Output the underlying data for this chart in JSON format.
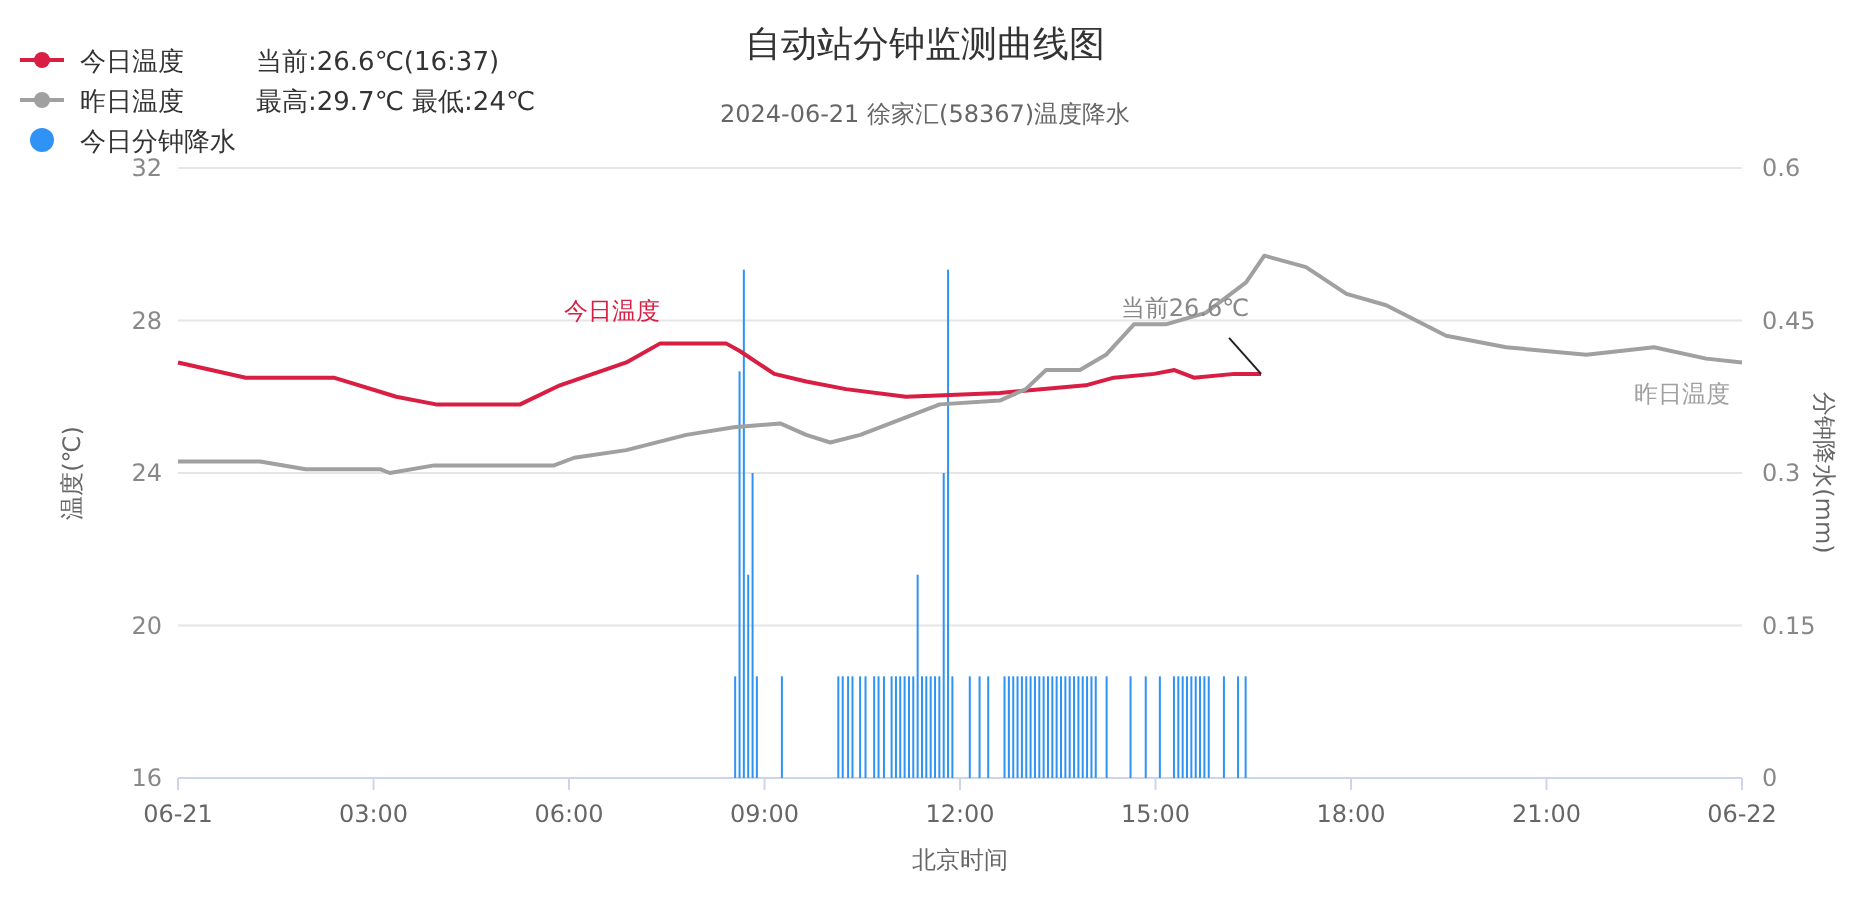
{
  "chart_data": {
    "type": "line",
    "title": "自动站分钟监测曲线图",
    "subtitle": "2024-06-21 徐家汇(58367)温度降水",
    "xlabel": "北京时间",
    "ylabel": "温度(℃)",
    "y2label": "分钟降水(mm)",
    "xlim": [
      0,
      24
    ],
    "xticks": [
      {
        "value": 0,
        "label": "06-21"
      },
      {
        "value": 3,
        "label": "03:00"
      },
      {
        "value": 6,
        "label": "06:00"
      },
      {
        "value": 9,
        "label": "09:00"
      },
      {
        "value": 12,
        "label": "12:00"
      },
      {
        "value": 15,
        "label": "15:00"
      },
      {
        "value": 18,
        "label": "18:00"
      },
      {
        "value": 21,
        "label": "21:00"
      },
      {
        "value": 24,
        "label": "06-22"
      }
    ],
    "ylim": [
      16,
      32
    ],
    "yticks": [
      16,
      20,
      24,
      28,
      32
    ],
    "y2lim": [
      0,
      0.6
    ],
    "y2ticks": [
      0,
      0.15,
      0.3,
      0.45,
      0.6
    ],
    "grid": "y",
    "legend": "top left",
    "annotations": [
      "当前:26.6℃(16:37)",
      "最高:29.7℃ 最低:24℃",
      {
        "text": "当前26.6℃",
        "x": 16.62,
        "y": 26.6
      }
    ],
    "series": [
      {
        "name": "今日温度",
        "color": "#d81e43",
        "x": [
          0,
          1.04,
          2.39,
          3.35,
          3.96,
          5.25,
          5.86,
          6.88,
          7.4,
          8.41,
          8.62,
          9.15,
          9.64,
          10.25,
          11.17,
          12.61,
          13.93,
          14.36,
          14.98,
          15.29,
          15.59,
          16.21,
          16.62
        ],
        "values": [
          26.9,
          26.5,
          26.5,
          26.0,
          25.8,
          25.8,
          26.3,
          26.9,
          27.4,
          27.4,
          27.2,
          26.6,
          26.4,
          26.2,
          26.0,
          26.1,
          26.3,
          26.5,
          26.6,
          26.7,
          26.5,
          26.6,
          26.6
        ]
      },
      {
        "name": "昨日温度",
        "color": "#a0a0a0",
        "x": [
          0,
          1.26,
          1.96,
          3.1,
          3.25,
          3.93,
          5.77,
          6.08,
          6.88,
          7.8,
          8.53,
          9.24,
          9.64,
          10.01,
          10.47,
          11.69,
          12.61,
          13.01,
          13.32,
          13.84,
          14.24,
          14.67,
          15.16,
          15.77,
          16.39,
          16.67,
          17.31,
          17.93,
          18.54,
          19.46,
          20.38,
          21.61,
          22.65,
          23.45,
          24
        ],
        "values": [
          24.3,
          24.3,
          24.1,
          24.1,
          24.0,
          24.2,
          24.2,
          24.4,
          24.6,
          25.0,
          25.2,
          25.3,
          25.0,
          24.8,
          25.0,
          25.8,
          25.9,
          26.2,
          26.7,
          26.7,
          27.1,
          27.9,
          27.9,
          28.2,
          29.0,
          29.7,
          29.4,
          28.7,
          28.4,
          27.6,
          27.3,
          27.1,
          27.3,
          27.0,
          26.9
        ]
      },
      {
        "name": "今日分钟降水",
        "type": "bar",
        "axis": "y2",
        "color": "#2e93f5",
        "x": [
          8.55,
          8.617,
          8.683,
          8.75,
          8.817,
          8.883,
          9.267,
          10.133,
          10.2,
          10.283,
          10.35,
          10.467,
          10.55,
          10.683,
          10.75,
          10.833,
          10.95,
          11.017,
          11.083,
          11.15,
          11.217,
          11.283,
          11.35,
          11.417,
          11.483,
          11.55,
          11.617,
          11.683,
          11.75,
          11.817,
          11.883,
          12.15,
          12.3,
          12.433,
          12.683,
          12.75,
          12.817,
          12.883,
          12.95,
          13.017,
          13.083,
          13.15,
          13.217,
          13.283,
          13.35,
          13.417,
          13.483,
          13.55,
          13.617,
          13.683,
          13.75,
          13.817,
          13.883,
          13.95,
          14.017,
          14.083,
          14.25,
          14.617,
          14.85,
          15.067,
          15.283,
          15.35,
          15.417,
          15.483,
          15.55,
          15.617,
          15.683,
          15.75,
          15.817,
          16.05,
          16.267,
          16.383
        ],
        "values": [
          0.1,
          0.4,
          0.5,
          0.2,
          0.3,
          0.1,
          0.1,
          0.1,
          0.1,
          0.1,
          0.1,
          0.1,
          0.1,
          0.1,
          0.1,
          0.1,
          0.1,
          0.1,
          0.1,
          0.1,
          0.1,
          0.1,
          0.2,
          0.1,
          0.1,
          0.1,
          0.1,
          0.1,
          0.3,
          0.5,
          0.1,
          0.1,
          0.1,
          0.1,
          0.1,
          0.1,
          0.1,
          0.1,
          0.1,
          0.1,
          0.1,
          0.1,
          0.1,
          0.1,
          0.1,
          0.1,
          0.1,
          0.1,
          0.1,
          0.1,
          0.1,
          0.1,
          0.1,
          0.1,
          0.1,
          0.1,
          0.1,
          0.1,
          0.1,
          0.1,
          0.1,
          0.1,
          0.1,
          0.1,
          0.1,
          0.1,
          0.1,
          0.1,
          0.1,
          0.1,
          0.1,
          0.1
        ]
      }
    ]
  }
}
